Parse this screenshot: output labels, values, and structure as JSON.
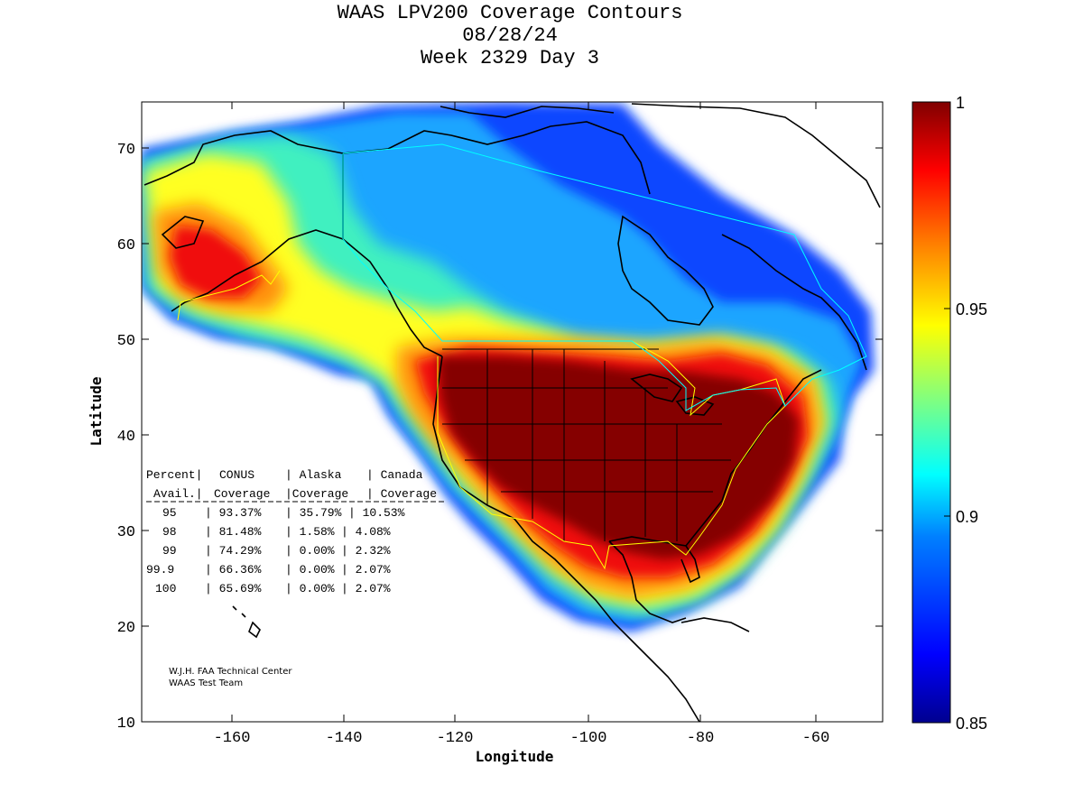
{
  "title": {
    "line1": "WAAS LPV200 Coverage Contours",
    "line2": "08/28/24",
    "line3": "Week 2329 Day 3"
  },
  "axes": {
    "xlabel": "Longitude",
    "ylabel": "Latitude",
    "xlim": [
      -175,
      -50
    ],
    "ylim": [
      10,
      75
    ],
    "xticks": [
      -160,
      -140,
      -120,
      -100,
      -80,
      -60
    ],
    "yticks": [
      10,
      20,
      30,
      40,
      50,
      60,
      70
    ]
  },
  "colorbar": {
    "min": 0.85,
    "max": 1,
    "ticks": [
      "1",
      "0.95",
      "0.9",
      "0.85"
    ],
    "colormap": [
      "#00008f",
      "#0000ff",
      "#0080ff",
      "#00ffff",
      "#80ff80",
      "#ffff00",
      "#ff8000",
      "#ff0000",
      "#800000"
    ]
  },
  "table": {
    "header1": [
      "Percent|",
      "CONUS",
      "| Alaska",
      "| Canada"
    ],
    "header2": [
      "Avail.|",
      "Coverage",
      "|Coverage",
      "| Coverage"
    ],
    "rows": [
      [
        "95",
        "| 93.37%",
        "| 35.79%",
        "| 10.53%"
      ],
      [
        "98",
        "| 81.48%",
        "| 1.58%",
        "| 4.08%"
      ],
      [
        "99",
        "| 74.29%",
        "| 0.00%",
        "| 2.32%"
      ],
      [
        "99.9",
        "| 66.36%",
        "| 0.00%",
        "| 2.07%"
      ],
      [
        "100",
        "| 65.69%",
        "| 0.00%",
        "| 2.07%"
      ]
    ]
  },
  "credit": {
    "line1": "W.J.H. FAA Technical Center",
    "line2": "WAAS Test Team"
  },
  "colors": {
    "outline": "#000000",
    "conus_boundary": "#ffff00",
    "canada_boundary": "#00ffff"
  }
}
